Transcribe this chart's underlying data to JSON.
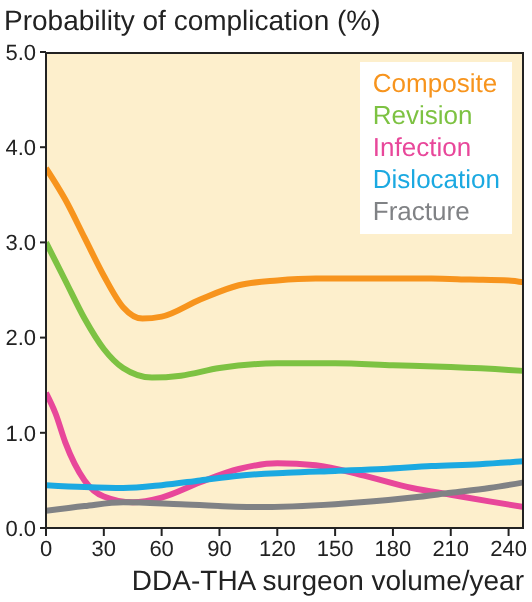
{
  "chart_data": {
    "type": "line",
    "ylabel": "Probability of complication (%)",
    "xlabel": "DDA-THA surgeon volume/year",
    "xlim": [
      0,
      248
    ],
    "xticks": [
      0,
      30,
      60,
      90,
      120,
      150,
      180,
      210,
      240
    ],
    "ylim": [
      0,
      5
    ],
    "yticks": [
      {
        "value": 0,
        "label": "0.0"
      },
      {
        "value": 1,
        "label": "1.0"
      },
      {
        "value": 2,
        "label": "2.0"
      },
      {
        "value": 3,
        "label": "3.0"
      },
      {
        "value": 4,
        "label": "4.0"
      },
      {
        "value": 5,
        "label": "5.0"
      }
    ],
    "grid": false,
    "legend": "top right",
    "marker": "none",
    "line_style": "solid",
    "series": [
      {
        "name": "Composite",
        "color": "#f7941d",
        "x": [
          0,
          10,
          20,
          30,
          40,
          50,
          60,
          80,
          100,
          120,
          140,
          160,
          180,
          200,
          220,
          240,
          248
        ],
        "values": [
          3.78,
          3.45,
          3.05,
          2.65,
          2.32,
          2.2,
          2.22,
          2.4,
          2.55,
          2.6,
          2.62,
          2.62,
          2.62,
          2.62,
          2.61,
          2.6,
          2.58
        ]
      },
      {
        "name": "Revision",
        "color": "#7dc242",
        "x": [
          0,
          10,
          20,
          30,
          40,
          55,
          70,
          90,
          120,
          150,
          180,
          210,
          240,
          248
        ],
        "values": [
          3.0,
          2.6,
          2.2,
          1.88,
          1.68,
          1.58,
          1.6,
          1.68,
          1.73,
          1.73,
          1.71,
          1.69,
          1.66,
          1.65
        ]
      },
      {
        "name": "Infection",
        "color": "#e8479a",
        "x": [
          0,
          5,
          10,
          20,
          30,
          45,
          60,
          80,
          100,
          120,
          140,
          165,
          190,
          210,
          230,
          248
        ],
        "values": [
          1.42,
          1.2,
          0.9,
          0.5,
          0.33,
          0.27,
          0.32,
          0.48,
          0.62,
          0.68,
          0.66,
          0.55,
          0.42,
          0.35,
          0.28,
          0.22
        ]
      },
      {
        "name": "Dislocation",
        "color": "#1ba9e1",
        "x": [
          0,
          20,
          40,
          60,
          80,
          100,
          125,
          150,
          175,
          200,
          225,
          248
        ],
        "values": [
          0.45,
          0.43,
          0.42,
          0.45,
          0.5,
          0.55,
          0.58,
          0.6,
          0.62,
          0.65,
          0.67,
          0.7
        ]
      },
      {
        "name": "Fracture",
        "color": "#808285",
        "x": [
          0,
          20,
          40,
          70,
          110,
          150,
          170,
          190,
          210,
          230,
          248
        ],
        "values": [
          0.18,
          0.23,
          0.27,
          0.25,
          0.22,
          0.25,
          0.28,
          0.32,
          0.37,
          0.42,
          0.48
        ]
      }
    ]
  }
}
